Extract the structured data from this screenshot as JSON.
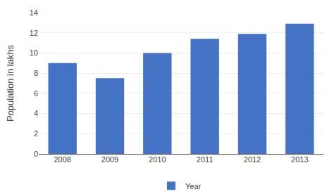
{
  "chart_data": {
    "type": "bar",
    "categories": [
      "2008",
      "2009",
      "2010",
      "2011",
      "2012",
      "2013"
    ],
    "series": [
      {
        "name": "Year",
        "color": "#4472C4",
        "values": [
          9.0,
          7.5,
          10.0,
          11.4,
          11.9,
          12.9
        ]
      }
    ],
    "ylabel": "Population in lakhs",
    "ylim": [
      0,
      14
    ],
    "yticks": [
      0,
      2,
      4,
      6,
      8,
      10,
      12,
      14
    ],
    "grid": true,
    "legend": "bottom"
  }
}
